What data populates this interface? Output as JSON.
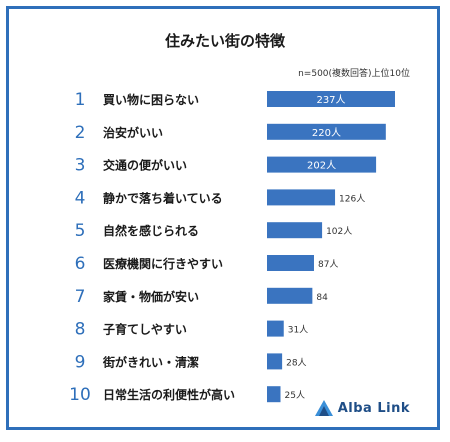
{
  "chart_data": {
    "type": "bar",
    "orientation": "horizontal",
    "title": "住みたい街の特徴",
    "note": "n=500(複数回答)上位10位",
    "ranks": [
      "1",
      "2",
      "3",
      "4",
      "5",
      "6",
      "7",
      "8",
      "9",
      "10"
    ],
    "categories": [
      "買い物に困らない",
      "治安がいい",
      "交通の便がいい",
      "静かで落ち着いている",
      "自然を感じられる",
      "医療機関に行きやすい",
      "家賃・物価が安い",
      "子育てしやすい",
      "街がきれい・清潔",
      "日常生活の利便性が高い"
    ],
    "values": [
      237,
      220,
      202,
      126,
      102,
      87,
      84,
      31,
      28,
      25
    ],
    "value_labels": [
      "237人",
      "220人",
      "202人",
      "126人",
      "102人",
      "87人",
      "84",
      "31人",
      "28人",
      "25人"
    ],
    "bar_color": "#3a74c0",
    "xlim": [
      0,
      237
    ]
  },
  "brand": {
    "name": "Alba Link",
    "color": "#1f4e87",
    "accent": "#3a8fd8"
  }
}
